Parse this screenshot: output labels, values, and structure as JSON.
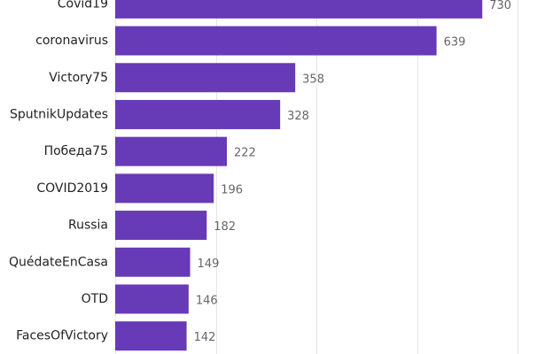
{
  "chart_data": {
    "type": "bar",
    "orientation": "horizontal",
    "categories": [
      "Covid19",
      "coronavirus",
      "Victory75",
      "SputnikUpdates",
      "Победа75",
      "COVID2019",
      "Russia",
      "QuédateEnCasa",
      "OTD",
      "FacesOfVictory"
    ],
    "values": [
      730,
      639,
      358,
      328,
      222,
      196,
      182,
      149,
      146,
      142
    ],
    "title": "",
    "xlabel": "",
    "ylabel": "",
    "xlim": [
      0,
      800
    ],
    "grid": true,
    "data_labels": true,
    "bar_color": "#673ab7"
  }
}
